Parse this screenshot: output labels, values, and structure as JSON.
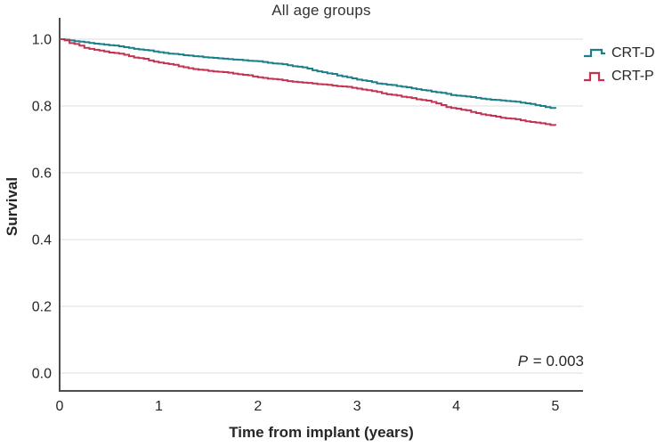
{
  "chart_data": {
    "type": "line",
    "subtype": "kaplan-meier-step",
    "title": "All age groups",
    "xlabel": "Time from implant (years)",
    "ylabel": "Survival",
    "xlim": [
      0,
      5
    ],
    "ylim": [
      0.0,
      1.0
    ],
    "xticks": [
      "0",
      "1",
      "2",
      "3",
      "4",
      "5"
    ],
    "yticks": [
      "0.0",
      "0.2",
      "0.4",
      "0.6",
      "0.8",
      "1.0"
    ],
    "ytick_values": [
      0.0,
      0.2,
      0.4,
      0.6,
      0.8,
      1.0
    ],
    "xtick_values": [
      0,
      1,
      2,
      3,
      4,
      5
    ],
    "grid": "horizontal",
    "legend_position": "outside-top-right",
    "annotation": {
      "p_label": "P",
      "p_rest": " = 0.003"
    },
    "x": [
      0,
      0.25,
      0.5,
      0.75,
      1.0,
      1.25,
      1.5,
      1.75,
      2.0,
      2.25,
      2.5,
      2.75,
      3.0,
      3.25,
      3.5,
      3.75,
      4.0,
      4.25,
      4.5,
      4.75,
      5.0
    ],
    "series": [
      {
        "name": "CRT-D",
        "color": "#1a7f88",
        "values": [
          1.0,
          0.991,
          0.982,
          0.971,
          0.961,
          0.952,
          0.945,
          0.939,
          0.934,
          0.925,
          0.912,
          0.896,
          0.879,
          0.866,
          0.856,
          0.843,
          0.831,
          0.822,
          0.815,
          0.806,
          0.792
        ]
      },
      {
        "name": "CRT-P",
        "color": "#c23351",
        "values": [
          1.0,
          0.974,
          0.96,
          0.945,
          0.93,
          0.916,
          0.905,
          0.897,
          0.886,
          0.877,
          0.869,
          0.861,
          0.852,
          0.838,
          0.826,
          0.812,
          0.792,
          0.775,
          0.763,
          0.752,
          0.741
        ]
      }
    ],
    "colors": {
      "grid": "#dcdcdc",
      "axis": "#4d4d4d",
      "tick_text": "#262626",
      "background": "#ffffff"
    }
  }
}
